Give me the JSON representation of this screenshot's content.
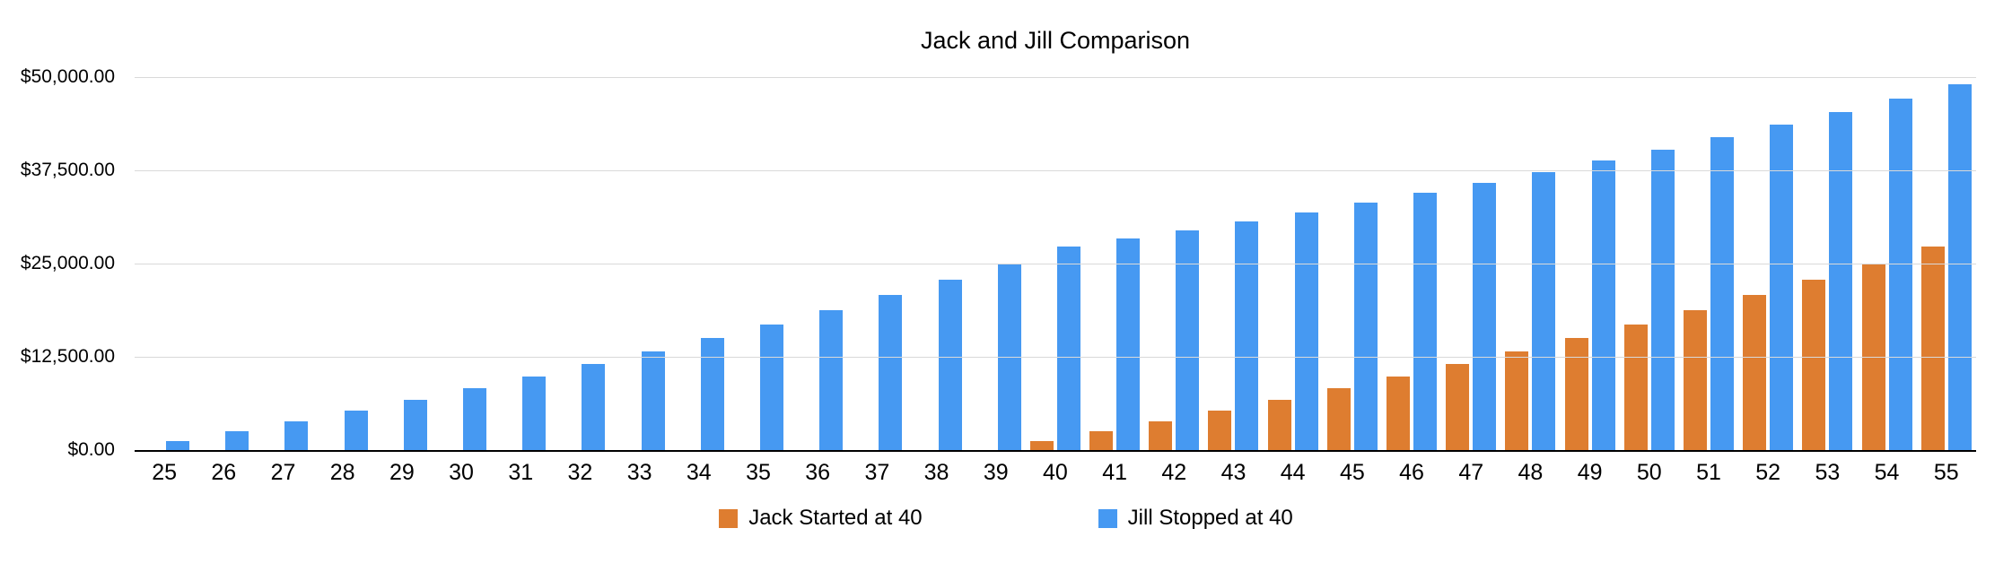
{
  "colors": {
    "jack_orange": "#DE7D30",
    "jill_blue": "#4699F2",
    "gridline": "#D9D9D9",
    "axis_line": "#000000",
    "text": "#000000",
    "background": "#FFFFFF"
  },
  "chart_data": {
    "type": "bar",
    "title": "Jack and Jill Comparison",
    "xlabel": "",
    "ylabel": "",
    "categories": [
      25,
      26,
      27,
      28,
      29,
      30,
      31,
      32,
      33,
      34,
      35,
      36,
      37,
      38,
      39,
      40,
      41,
      42,
      43,
      44,
      45,
      46,
      47,
      48,
      49,
      50,
      51,
      52,
      53,
      54,
      55
    ],
    "series": [
      {
        "id": "jack",
        "name": "Jack Started at 40",
        "color": "#DE7D30",
        "values": [
          0,
          0,
          0,
          0,
          0,
          0,
          0,
          0,
          0,
          0,
          0,
          0,
          0,
          0,
          0,
          1248,
          2546,
          3896,
          5300,
          6760,
          8278,
          9857,
          11499,
          13207,
          14983,
          16830,
          18751,
          20749,
          22827,
          24988,
          27236
        ]
      },
      {
        "id": "jill",
        "name": "Jill Stopped at 40",
        "color": "#4699F2",
        "values": [
          1248,
          2546,
          3896,
          5300,
          6760,
          8278,
          9857,
          11499,
          13207,
          14983,
          16830,
          18751,
          20749,
          22827,
          24988,
          27236,
          28325,
          29458,
          30636,
          31862,
          33136,
          34462,
          35840,
          37274,
          38765,
          40315,
          41928,
          43605,
          45349,
          47163,
          49050
        ]
      }
    ],
    "ylim": [
      0,
      50000
    ],
    "ytick_interval": 12500,
    "ytick_labels": [
      "$0.00",
      "$12,500.00",
      "$25,000.00",
      "$37,500.00",
      "$50,000.00"
    ],
    "grid": true,
    "legend_position": "bottom"
  }
}
